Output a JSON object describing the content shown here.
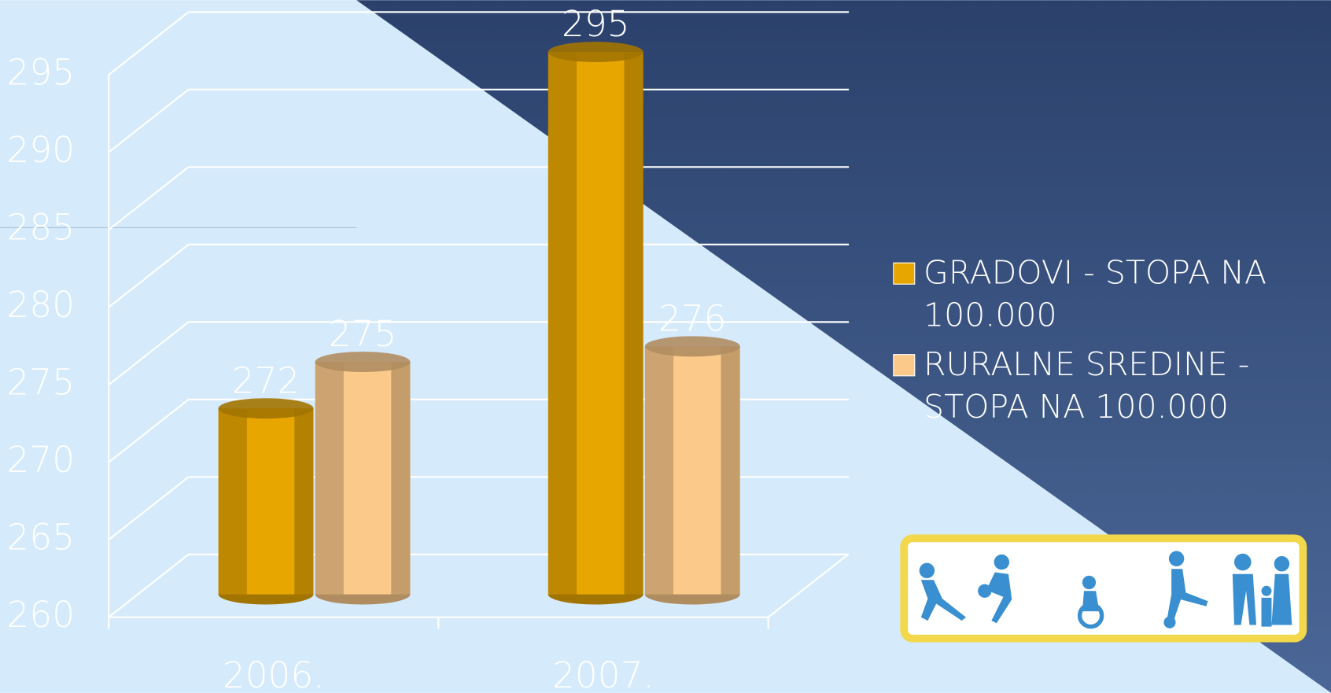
{
  "chart_data": {
    "type": "bar",
    "categories": [
      "2006.",
      "2007."
    ],
    "series": [
      {
        "name": "GRADOVI - STOPA NA 100.000",
        "color": "#e8a600",
        "values": [
          272,
          295
        ]
      },
      {
        "name": "RURALNE SREDINE - STOPA NA 100.000",
        "color": "#fbc98a",
        "values": [
          275,
          276
        ]
      }
    ],
    "ylim": [
      260,
      295
    ],
    "yticks": [
      260,
      265,
      270,
      275,
      280,
      285,
      290,
      295
    ],
    "grid": true,
    "legend": "right"
  }
}
